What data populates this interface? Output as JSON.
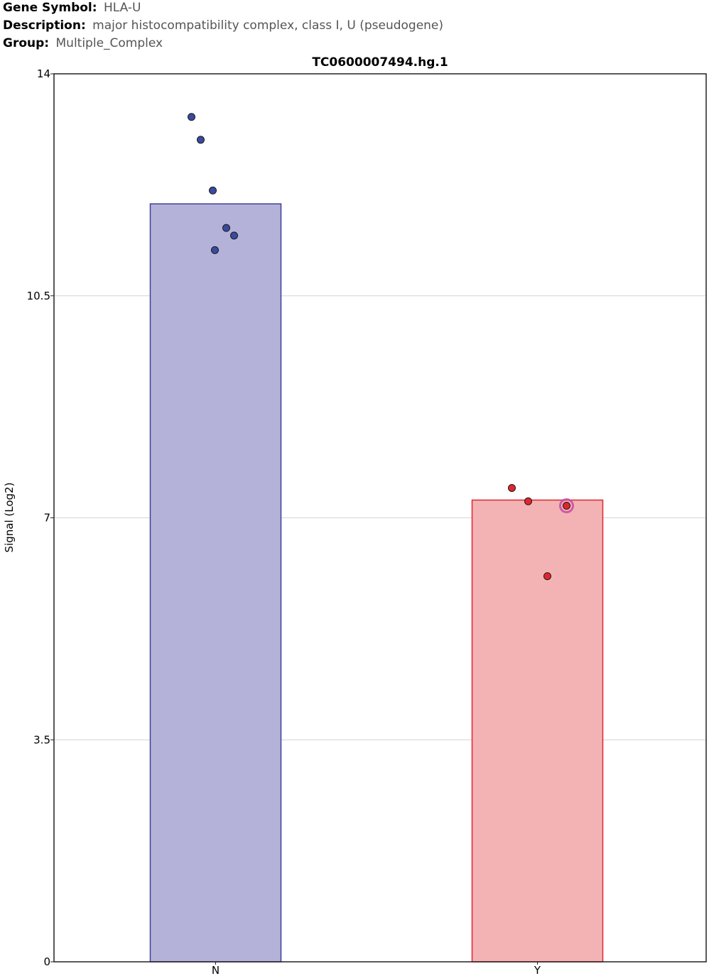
{
  "header": {
    "gene_symbol_key": "Gene Symbol:",
    "gene_symbol": "HLA-U",
    "description_key": "Description:",
    "description": "major histocompatibility complex, class I, U (pseudogene)",
    "group_key": "Group:",
    "group": "Multiple_Complex"
  },
  "chart_data": {
    "type": "bar",
    "title": "TC0600007494.hg.1",
    "xlabel": "",
    "ylabel": "Signal (Log2)",
    "ylim": [
      0,
      14
    ],
    "yticks": [
      "0",
      "3.5",
      "7",
      "10.5",
      "14"
    ],
    "grid": true,
    "categories": [
      "N",
      "Y"
    ],
    "values": [
      11.95,
      7.28
    ],
    "bar_fill_colors": [
      "#b5b2d9",
      "#f3b3b4"
    ],
    "bar_edge_colors": [
      "#3f3f9a",
      "#e0262d"
    ],
    "point_colors": [
      "#3a4aa0",
      "#e0262d"
    ],
    "points": [
      [
        13.32,
        12.96,
        12.16,
        11.57,
        11.45,
        11.22
      ],
      [
        7.47,
        7.26,
        7.19,
        6.08
      ]
    ],
    "highlighted_point": {
      "category": "Y",
      "value": 7.19,
      "ring_color": "#c64aa5"
    }
  }
}
